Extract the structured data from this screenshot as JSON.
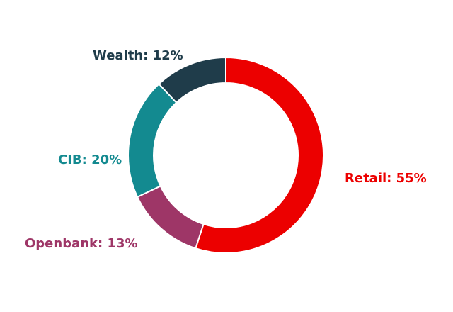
{
  "chart_data": {
    "type": "pie",
    "variant": "donut",
    "start": "12 o'clock",
    "direction": "clockwise",
    "slices": [
      {
        "label": "Retail",
        "value": 55,
        "text": "Retail: 55%",
        "color": "#ec0000"
      },
      {
        "label": "Openbank",
        "value": 13,
        "text": "Openbank: 13%",
        "color": "#9e3667"
      },
      {
        "label": "CIB",
        "value": 20,
        "text": "CIB: 20%",
        "color": "#138a90"
      },
      {
        "label": "Wealth",
        "value": 12,
        "text": "Wealth: 12%",
        "color": "#1f3c4a"
      }
    ]
  }
}
